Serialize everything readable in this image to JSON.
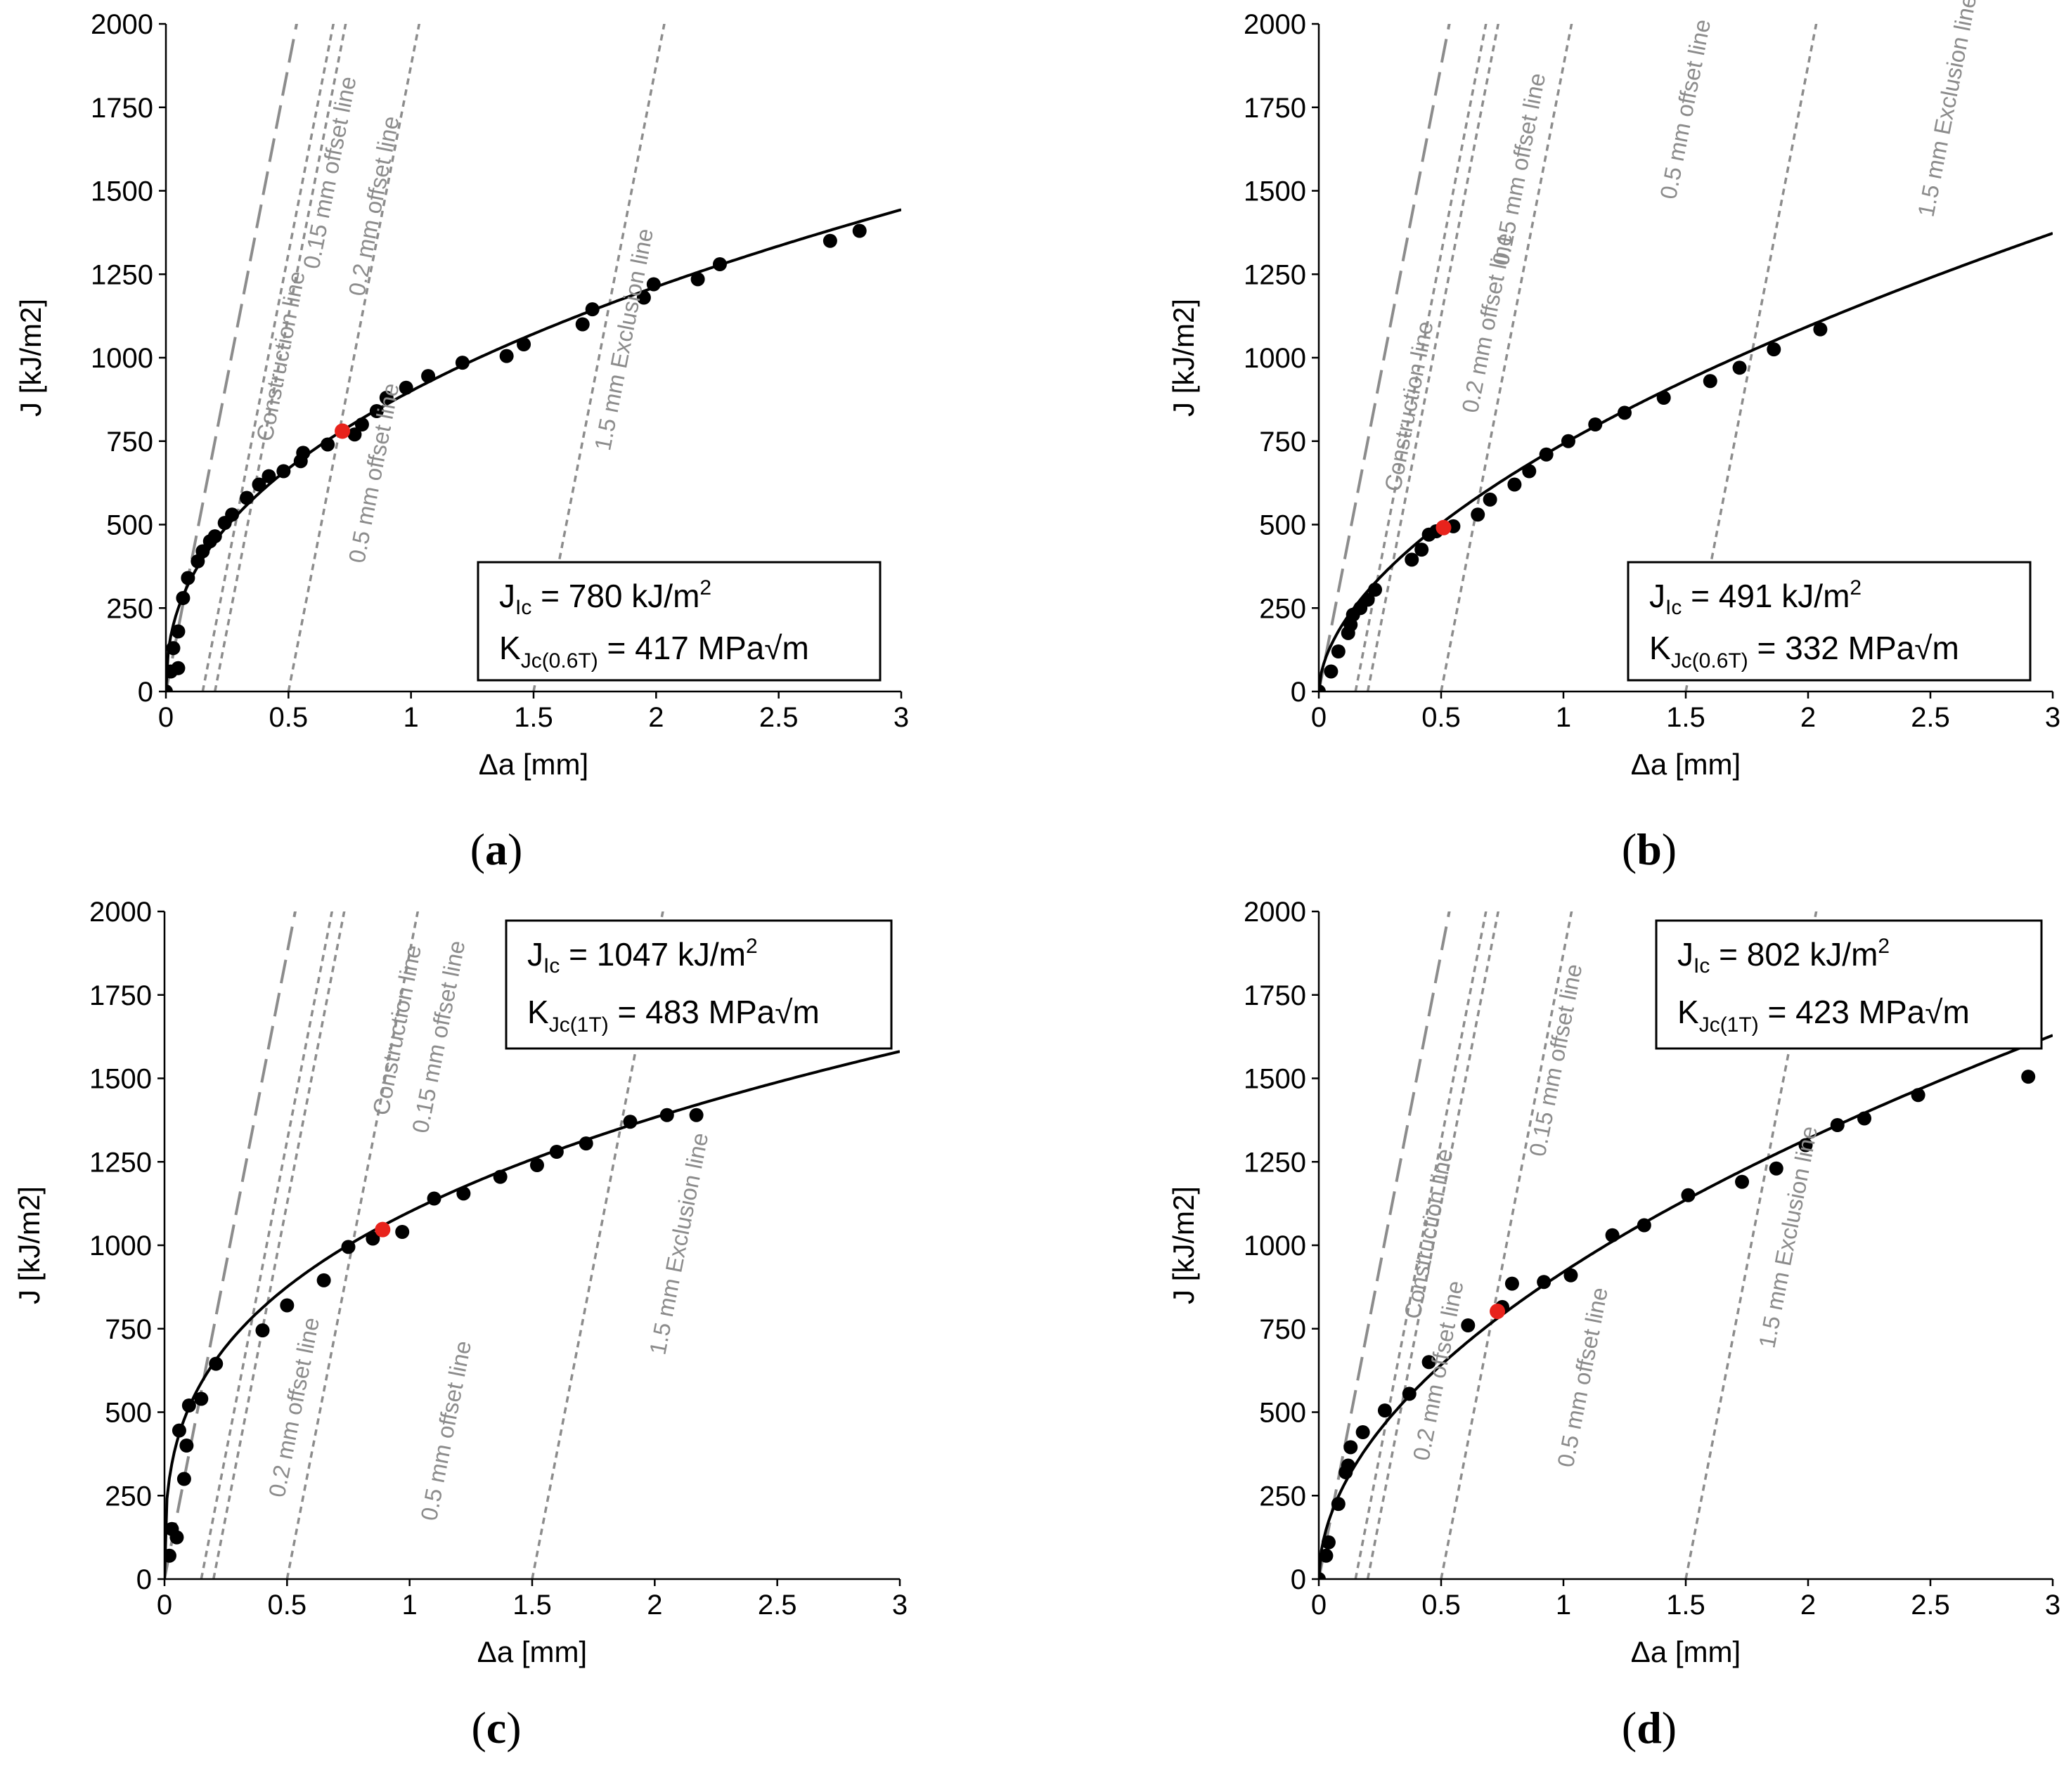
{
  "figure": {
    "panels": [
      "a",
      "b",
      "c",
      "d"
    ]
  },
  "colors": {
    "data_point": "#000000",
    "jic_point": "#e8231c",
    "fit_curve": "#000000",
    "guide_line": "#8c8c8c",
    "guide_text": "#8c8c8c",
    "axis": "#000000"
  },
  "chart_data": [
    {
      "panel_label": "a",
      "type": "scatter",
      "xlabel": "Δa [mm]",
      "ylabel": "J [kJ/m2]",
      "xlim": [
        0,
        3
      ],
      "ylim": [
        0,
        2000
      ],
      "xticks": [
        0,
        0.5,
        1,
        1.5,
        2,
        2.5,
        3
      ],
      "yticks": [
        0,
        250,
        500,
        750,
        1000,
        1250,
        1500,
        1750,
        2000
      ],
      "xtick_labels": [
        "0",
        "0.5",
        "1",
        "1.5",
        "2",
        "2.5",
        "3"
      ],
      "ytick_labels": [
        "0",
        "250",
        "500",
        "750",
        "1000",
        "1250",
        "1500",
        "1750",
        "2000"
      ],
      "fit": {
        "C": 900,
        "n": 0.43
      },
      "construction_slope": 3750,
      "points": [
        [
          0,
          0
        ],
        [
          0.02,
          60
        ],
        [
          0.03,
          130
        ],
        [
          0.05,
          180
        ],
        [
          0.05,
          70
        ],
        [
          0.07,
          280
        ],
        [
          0.09,
          340
        ],
        [
          0.13,
          390
        ],
        [
          0.15,
          420
        ],
        [
          0.18,
          450
        ],
        [
          0.2,
          465
        ],
        [
          0.24,
          505
        ],
        [
          0.27,
          530
        ],
        [
          0.33,
          580
        ],
        [
          0.38,
          620
        ],
        [
          0.42,
          645
        ],
        [
          0.48,
          660
        ],
        [
          0.55,
          690
        ],
        [
          0.56,
          715
        ],
        [
          0.66,
          740
        ],
        [
          0.77,
          770
        ],
        [
          0.8,
          800
        ],
        [
          0.86,
          840
        ],
        [
          0.9,
          880
        ],
        [
          0.98,
          910
        ],
        [
          1.07,
          945
        ],
        [
          1.21,
          985
        ],
        [
          1.39,
          1005
        ],
        [
          1.46,
          1040
        ],
        [
          1.7,
          1100
        ],
        [
          1.74,
          1145
        ],
        [
          1.95,
          1180
        ],
        [
          1.99,
          1220
        ],
        [
          2.17,
          1235
        ],
        [
          2.26,
          1280
        ],
        [
          2.71,
          1350
        ],
        [
          2.83,
          1380
        ]
      ],
      "jic_point": [
        0.72,
        780
      ],
      "lines": [
        {
          "label": "Construction line",
          "offset": 0,
          "dash": "long"
        },
        {
          "label": "0.15 mm offset line",
          "offset": 0.15,
          "dash": "short"
        },
        {
          "label": "0.2 mm offset line",
          "offset": 0.2,
          "dash": "short"
        },
        {
          "label": "0.5 mm offset line",
          "offset": 0.5,
          "dash": "short"
        },
        {
          "label": "1.5 mm Exclusion line",
          "offset": 1.5,
          "dash": "short"
        }
      ],
      "line_label_positions": [
        [
          0.5,
          1000
        ],
        [
          0.7,
          1550
        ],
        [
          0.88,
          1450
        ],
        [
          0.88,
          650
        ],
        [
          1.9,
          1050
        ]
      ],
      "legend_position": "bottom-right",
      "annotation": {
        "jic_symbol": "J",
        "jic_sub": "Ic",
        "jic_value": " = 780 kJ/m",
        "jic_sup": "2",
        "kjc_symbol": "K",
        "kjc_sub": "Jc(0.6T)",
        "kjc_value": " = 417 MPa√m"
      }
    },
    {
      "panel_label": "b",
      "type": "scatter",
      "xlabel": "Δa [mm]",
      "ylabel": "J [kJ/m2]",
      "xlim": [
        0,
        3
      ],
      "ylim": [
        0,
        2000
      ],
      "xticks": [
        0,
        0.5,
        1,
        1.5,
        2,
        2.5,
        3
      ],
      "yticks": [
        0,
        250,
        500,
        750,
        1000,
        1250,
        1500,
        1750,
        2000
      ],
      "xtick_labels": [
        "0",
        "0.5",
        "1",
        "1.5",
        "2",
        "2.5",
        "3"
      ],
      "ytick_labels": [
        "0",
        "250",
        "500",
        "750",
        "1000",
        "1250",
        "1500",
        "1750",
        "2000"
      ],
      "fit": {
        "C": 742,
        "n": 0.56
      },
      "construction_slope": 3750,
      "points": [
        [
          0,
          0
        ],
        [
          0.05,
          60
        ],
        [
          0.08,
          120
        ],
        [
          0.12,
          175
        ],
        [
          0.13,
          200
        ],
        [
          0.14,
          230
        ],
        [
          0.17,
          250
        ],
        [
          0.2,
          275
        ],
        [
          0.23,
          305
        ],
        [
          0.38,
          395
        ],
        [
          0.42,
          425
        ],
        [
          0.45,
          470
        ],
        [
          0.48,
          480
        ],
        [
          0.55,
          495
        ],
        [
          0.65,
          530
        ],
        [
          0.7,
          575
        ],
        [
          0.8,
          620
        ],
        [
          0.86,
          660
        ],
        [
          0.93,
          710
        ],
        [
          1.02,
          750
        ],
        [
          1.13,
          800
        ],
        [
          1.25,
          835
        ],
        [
          1.41,
          880
        ],
        [
          1.6,
          930
        ],
        [
          1.72,
          970
        ],
        [
          1.86,
          1025
        ],
        [
          2.05,
          1085
        ]
      ],
      "jic_point": [
        0.51,
        491
      ],
      "lines": [
        {
          "label": "Construction line",
          "offset": 0,
          "dash": "long"
        },
        {
          "label": "0.15 mm offset line",
          "offset": 0.15,
          "dash": "short"
        },
        {
          "label": "0.2 mm offset line",
          "offset": 0.2,
          "dash": "short"
        },
        {
          "label": "0.5 mm offset line",
          "offset": 0.5,
          "dash": "short"
        },
        {
          "label": "1.5 mm Exclusion line",
          "offset": 1.5,
          "dash": "short"
        }
      ],
      "line_label_positions": [
        [
          0.4,
          850
        ],
        [
          0.85,
          1560
        ],
        [
          0.72,
          1100
        ],
        [
          1.53,
          1740
        ],
        [
          2.6,
          1750
        ]
      ],
      "legend_position": "bottom-right",
      "annotation": {
        "jic_symbol": "J",
        "jic_sub": "Ic",
        "jic_value": " = 491 kJ/m",
        "jic_sup": "2",
        "kjc_symbol": "K",
        "kjc_sub": "Jc(0.6T)",
        "kjc_value": " = 332 MPa√m"
      }
    },
    {
      "panel_label": "c",
      "type": "scatter",
      "xlabel": "Δa [mm]",
      "ylabel": "J [kJ/m2]",
      "xlim": [
        0,
        3
      ],
      "ylim": [
        0,
        2000
      ],
      "xticks": [
        0,
        0.5,
        1,
        1.5,
        2,
        2.5,
        3
      ],
      "yticks": [
        0,
        250,
        500,
        750,
        1000,
        1250,
        1500,
        1750,
        2000
      ],
      "xtick_labels": [
        "0",
        "0.5",
        "1",
        "1.5",
        "2",
        "2.5",
        "3"
      ],
      "ytick_labels": [
        "0",
        "250",
        "500",
        "750",
        "1000",
        "1250",
        "1500",
        "1750",
        "2000"
      ],
      "fit": {
        "C": 1100,
        "n": 0.33
      },
      "construction_slope": 3750,
      "points": [
        [
          0.02,
          70
        ],
        [
          0.03,
          150
        ],
        [
          0.05,
          125
        ],
        [
          0.06,
          445
        ],
        [
          0.08,
          300
        ],
        [
          0.09,
          400
        ],
        [
          0.1,
          520
        ],
        [
          0.15,
          540
        ],
        [
          0.21,
          645
        ],
        [
          0.4,
          745
        ],
        [
          0.5,
          820
        ],
        [
          0.65,
          895
        ],
        [
          0.75,
          995
        ],
        [
          0.85,
          1020
        ],
        [
          0.97,
          1040
        ],
        [
          1.1,
          1140
        ],
        [
          1.22,
          1155
        ],
        [
          1.37,
          1205
        ],
        [
          1.52,
          1240
        ],
        [
          1.6,
          1280
        ],
        [
          1.72,
          1305
        ],
        [
          1.9,
          1370
        ],
        [
          2.05,
          1390
        ],
        [
          2.17,
          1390
        ]
      ],
      "jic_point": [
        0.89,
        1047
      ],
      "lines": [
        {
          "label": "Construction line",
          "offset": 0,
          "dash": "long"
        },
        {
          "label": "0.15 mm offset line",
          "offset": 0.15,
          "dash": "short"
        },
        {
          "label": "0.2 mm offset line",
          "offset": 0.2,
          "dash": "short"
        },
        {
          "label": "0.5 mm offset line",
          "offset": 0.5,
          "dash": "short"
        },
        {
          "label": "1.5 mm Exclusion line",
          "offset": 1.5,
          "dash": "short"
        }
      ],
      "line_label_positions": [
        [
          0.98,
          1640
        ],
        [
          1.15,
          1620
        ],
        [
          0.56,
          510
        ],
        [
          1.18,
          440
        ],
        [
          2.13,
          1000
        ]
      ],
      "legend_position": "top-right",
      "annotation": {
        "jic_symbol": "J",
        "jic_sub": "Ic",
        "jic_value": " = 1047 kJ/m",
        "jic_sup": "2",
        "kjc_symbol": "K",
        "kjc_sub": "Jc(1T)",
        "kjc_value": " = 483 MPa√m"
      }
    },
    {
      "panel_label": "d",
      "type": "scatter",
      "xlabel": "Δa [mm]",
      "ylabel": "J [kJ/m2]",
      "xlim": [
        0,
        3
      ],
      "ylim": [
        0,
        2000
      ],
      "xticks": [
        0,
        0.5,
        1,
        1.5,
        2,
        2.5,
        3
      ],
      "yticks": [
        0,
        250,
        500,
        750,
        1000,
        1250,
        1500,
        1750,
        2000
      ],
      "xtick_labels": [
        "0",
        "0.5",
        "1",
        "1.5",
        "2",
        "2.5",
        "3"
      ],
      "ytick_labels": [
        "0",
        "250",
        "500",
        "750",
        "1000",
        "1250",
        "1500",
        "1750",
        "2000"
      ],
      "fit": {
        "C": 920,
        "n": 0.52
      },
      "construction_slope": 3750,
      "points": [
        [
          0,
          0
        ],
        [
          0.03,
          70
        ],
        [
          0.04,
          110
        ],
        [
          0.08,
          225
        ],
        [
          0.11,
          320
        ],
        [
          0.12,
          340
        ],
        [
          0.13,
          395
        ],
        [
          0.18,
          440
        ],
        [
          0.27,
          505
        ],
        [
          0.37,
          555
        ],
        [
          0.45,
          650
        ],
        [
          0.61,
          760
        ],
        [
          0.75,
          815
        ],
        [
          0.79,
          885
        ],
        [
          0.92,
          890
        ],
        [
          1.03,
          910
        ],
        [
          1.2,
          1030
        ],
        [
          1.33,
          1060
        ],
        [
          1.51,
          1150
        ],
        [
          1.73,
          1190
        ],
        [
          1.87,
          1230
        ],
        [
          1.99,
          1300
        ],
        [
          2.12,
          1360
        ],
        [
          2.23,
          1380
        ],
        [
          2.45,
          1450
        ],
        [
          2.9,
          1505
        ]
      ],
      "jic_point": [
        0.73,
        802
      ],
      "lines": [
        {
          "label": "Construction line",
          "offset": 0,
          "dash": "long"
        },
        {
          "label": "0.15 mm offset line",
          "offset": 0.15,
          "dash": "short"
        },
        {
          "label": "0.2 mm offset line",
          "offset": 0.2,
          "dash": "short"
        },
        {
          "label": "0.5 mm offset line",
          "offset": 0.5,
          "dash": "short"
        },
        {
          "label": "1.5 mm Exclusion line",
          "offset": 1.5,
          "dash": "short"
        }
      ],
      "line_label_positions": [
        [
          0.48,
          1030
        ],
        [
          1.0,
          1550
        ],
        [
          0.52,
          620
        ],
        [
          1.11,
          600
        ],
        [
          1.95,
          1020
        ]
      ],
      "legend_position": "top-right",
      "annotation": {
        "jic_symbol": "J",
        "jic_sub": "Ic",
        "jic_value": " = 802 kJ/m",
        "jic_sup": "2",
        "kjc_symbol": "K",
        "kjc_sub": "Jc(1T)",
        "kjc_value": " = 423 MPa√m"
      }
    }
  ]
}
